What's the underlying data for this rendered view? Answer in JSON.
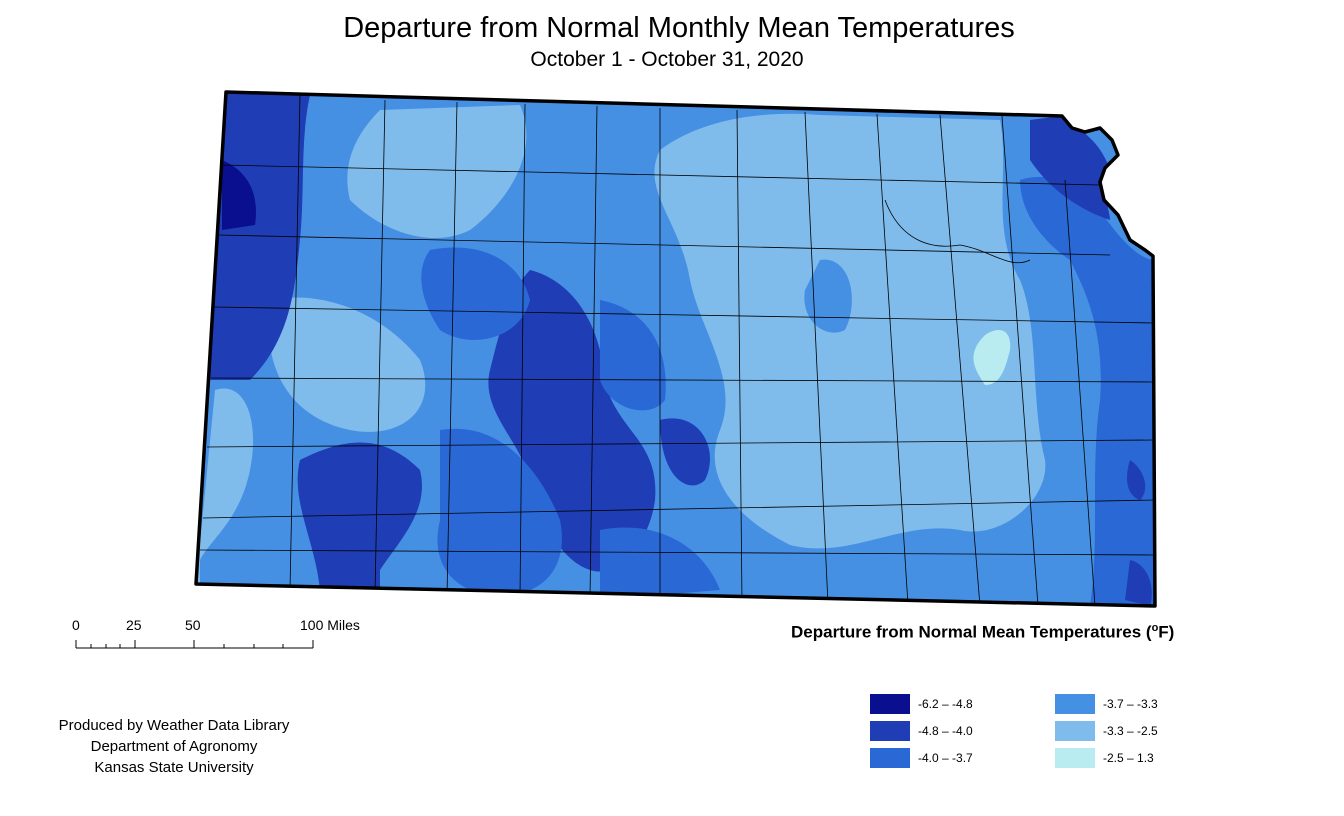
{
  "title": "Departure from Normal Monthly Mean Temperatures",
  "subtitle": "October 1 - October 31, 2020",
  "scale_bar": {
    "labels": [
      "0",
      "25",
      "50",
      "100 Miles"
    ]
  },
  "legend": {
    "title": "Departure from Normal Mean Temperatures (",
    "title_unit_sup": "o",
    "title_unit": "F)",
    "items": [
      {
        "label": "-6.2 – -4.8",
        "color": "#0a0f8f"
      },
      {
        "label": "-4.8 – -4.0",
        "color": "#1f3db5"
      },
      {
        "label": "-4.0 – -3.7",
        "color": "#2a68d6"
      },
      {
        "label": "-3.7 – -3.3",
        "color": "#4690e4"
      },
      {
        "label": "-3.3 – -2.5",
        "color": "#7fbcec"
      },
      {
        "label": "-2.5 – 1.3",
        "color": "#b8ecf0"
      }
    ]
  },
  "credits": [
    "Produced by Weather Data Library",
    "Department of Agronomy",
    "Kansas State University"
  ]
}
